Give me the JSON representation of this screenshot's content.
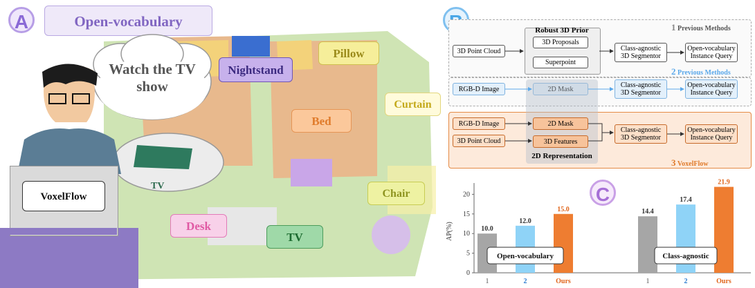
{
  "panel_a": {
    "badge": "A",
    "title": "Open-vocabulary",
    "thought": "Watch the TV show",
    "voxelflow_label": "VoxelFlow",
    "tags": {
      "nightstand": "Nightstand",
      "pillow": "Pillow",
      "bed": "Bed",
      "curtain": "Curtain",
      "chair": "Chair",
      "desk": "Desk",
      "tv_bottom": "TV",
      "tv_bubble": "TV"
    }
  },
  "panel_b": {
    "badge": "B",
    "row1": {
      "legend": "Previous Methods",
      "legend_num": "1",
      "prior_title": "Robust 3D Prior",
      "input": "3D Point Cloud",
      "proposals": "3D Proposals",
      "superpoint": "Superpoint",
      "segmentor": "Class-agnostic 3D Segmentor",
      "query": "Open-vocabulary Instance Query"
    },
    "row2": {
      "legend": "Previous Methods",
      "legend_num": "2",
      "input": "RGB-D Image",
      "mask": "2D Mask",
      "segmentor": "Class-agnostic 3D Segmentor",
      "query": "Open-vocabulary Instance Query"
    },
    "row3": {
      "legend": "VoxelFlow",
      "legend_num": "3",
      "input1": "RGB-D Image",
      "input2": "3D Point Cloud",
      "mask": "2D Mask",
      "features": "3D Features",
      "representation": "2D Representation",
      "segmentor": "Class-agnostic 3D Segmentor",
      "query": "Open-vocabulary Instance Query"
    }
  },
  "panel_c": {
    "badge": "C",
    "chart_data": {
      "type": "bar",
      "ylabel": "AP(%)",
      "ylim": [
        0,
        22
      ],
      "yticks": [
        0,
        5,
        10,
        15,
        20
      ],
      "groups": [
        {
          "name": "Open-vocabulary",
          "bars": [
            {
              "label": "1",
              "value": 10.0,
              "value_text": "10.0"
            },
            {
              "label": "2",
              "value": 12.0,
              "value_text": "12.0"
            },
            {
              "label": "Ours",
              "value": 15.0,
              "value_text": "15.0"
            }
          ]
        },
        {
          "name": "Class-agnostic",
          "bars": [
            {
              "label": "1",
              "value": 14.4,
              "value_text": "14.4"
            },
            {
              "label": "2",
              "value": 17.4,
              "value_text": "17.4"
            },
            {
              "label": "Ours",
              "value": 21.9,
              "value_text": "21.9"
            }
          ]
        }
      ],
      "colors": {
        "1": "#a6a6a6",
        "2": "#8fd3f7",
        "Ours": "#ee7d31"
      },
      "label_colors": {
        "1": "#555555",
        "2": "#2a7bd0",
        "Ours": "#e0651b"
      }
    }
  }
}
